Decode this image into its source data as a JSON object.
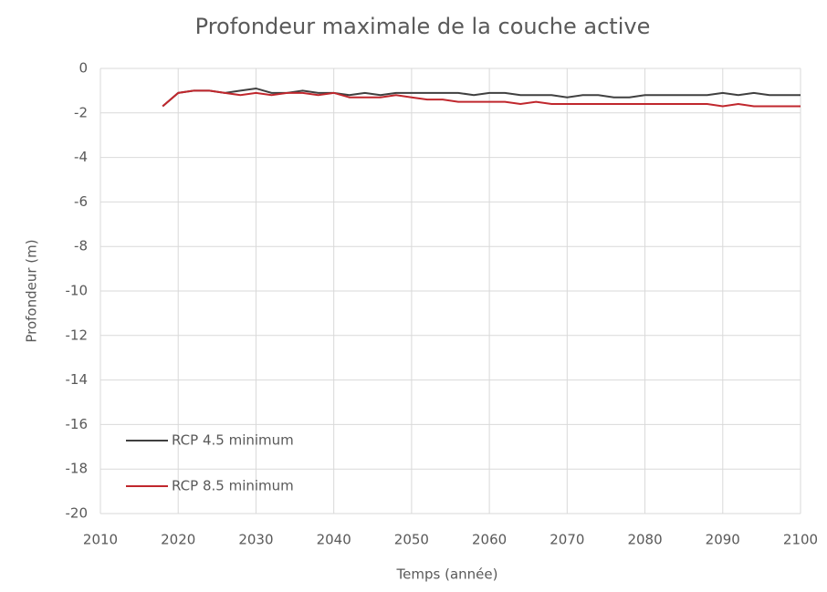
{
  "chart_data": {
    "type": "line",
    "title": "Profondeur maximale de la couche active",
    "xlabel": "Temps (année)",
    "ylabel": "Profondeur (m)",
    "x": [
      2018,
      2020,
      2022,
      2024,
      2026,
      2028,
      2030,
      2032,
      2034,
      2036,
      2038,
      2040,
      2042,
      2044,
      2046,
      2048,
      2050,
      2052,
      2054,
      2056,
      2058,
      2060,
      2062,
      2064,
      2066,
      2068,
      2070,
      2072,
      2074,
      2076,
      2078,
      2080,
      2082,
      2084,
      2086,
      2088,
      2090,
      2092,
      2094,
      2096,
      2098,
      2100
    ],
    "series": [
      {
        "name": "RCP 4.5 minimum",
        "color": "#404040",
        "values": [
          -1.7,
          -1.1,
          -1.0,
          -1.0,
          -1.1,
          -1.0,
          -0.9,
          -1.1,
          -1.1,
          -1.0,
          -1.1,
          -1.1,
          -1.2,
          -1.1,
          -1.2,
          -1.1,
          -1.1,
          -1.1,
          -1.1,
          -1.1,
          -1.2,
          -1.1,
          -1.1,
          -1.2,
          -1.2,
          -1.2,
          -1.3,
          -1.2,
          -1.2,
          -1.3,
          -1.3,
          -1.2,
          -1.2,
          -1.2,
          -1.2,
          -1.2,
          -1.1,
          -1.2,
          -1.1,
          -1.2,
          -1.2,
          -1.2
        ]
      },
      {
        "name": "RCP 8.5 minimum",
        "color": "#c0272d",
        "values": [
          -1.7,
          -1.1,
          -1.0,
          -1.0,
          -1.1,
          -1.2,
          -1.1,
          -1.2,
          -1.1,
          -1.1,
          -1.2,
          -1.1,
          -1.3,
          -1.3,
          -1.3,
          -1.2,
          -1.3,
          -1.4,
          -1.4,
          -1.5,
          -1.5,
          -1.5,
          -1.5,
          -1.6,
          -1.5,
          -1.6,
          -1.6,
          -1.6,
          -1.6,
          -1.6,
          -1.6,
          -1.6,
          -1.6,
          -1.6,
          -1.6,
          -1.6,
          -1.7,
          -1.6,
          -1.7,
          -1.7,
          -1.7,
          -1.7
        ]
      }
    ],
    "xlim": [
      2010,
      2100
    ],
    "xticks": [
      2010,
      2020,
      2030,
      2040,
      2050,
      2060,
      2070,
      2080,
      2090,
      2100
    ],
    "ylim": [
      -20,
      0
    ],
    "yticks": [
      0,
      -2,
      -4,
      -6,
      -8,
      -10,
      -12,
      -14,
      -16,
      -18,
      -20
    ],
    "grid": true,
    "legend": "lower left"
  }
}
